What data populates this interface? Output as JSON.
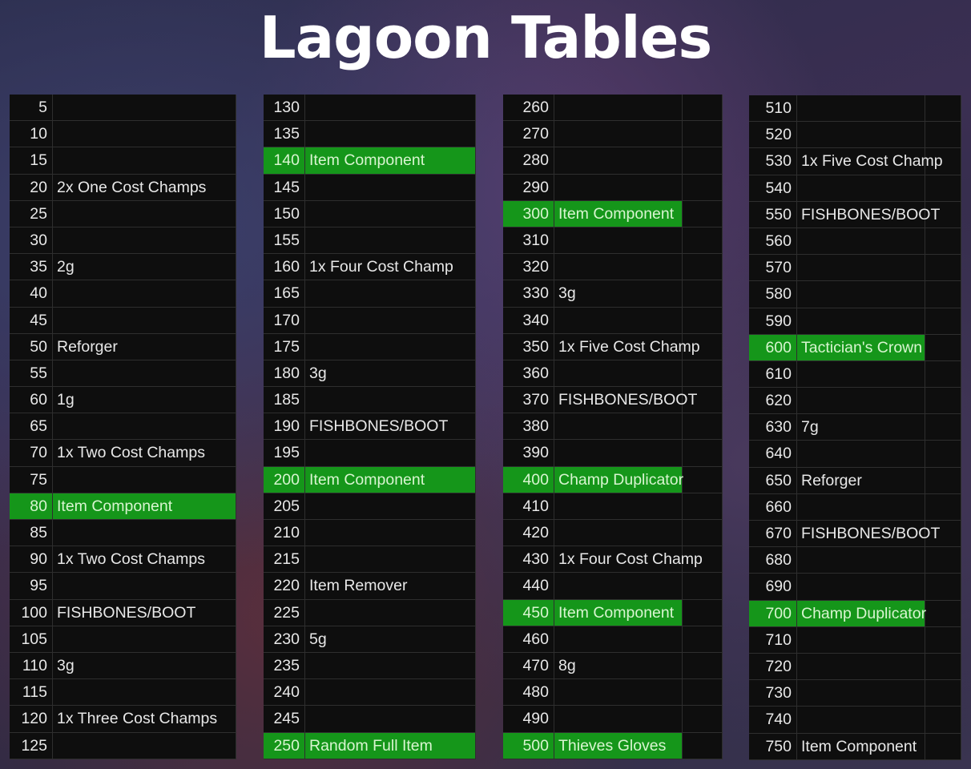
{
  "title": "Lagoon Tables",
  "highlight_color": "#15961a",
  "tables": [
    {
      "rows": [
        {
          "n": "5",
          "label": ""
        },
        {
          "n": "10",
          "label": ""
        },
        {
          "n": "15",
          "label": ""
        },
        {
          "n": "20",
          "label": "2x One Cost Champs"
        },
        {
          "n": "25",
          "label": ""
        },
        {
          "n": "30",
          "label": ""
        },
        {
          "n": "35",
          "label": "2g"
        },
        {
          "n": "40",
          "label": ""
        },
        {
          "n": "45",
          "label": ""
        },
        {
          "n": "50",
          "label": "Reforger"
        },
        {
          "n": "55",
          "label": ""
        },
        {
          "n": "60",
          "label": "1g"
        },
        {
          "n": "65",
          "label": ""
        },
        {
          "n": "70",
          "label": "1x Two Cost Champs"
        },
        {
          "n": "75",
          "label": ""
        },
        {
          "n": "80",
          "label": "Item Component",
          "hl": true
        },
        {
          "n": "85",
          "label": ""
        },
        {
          "n": "90",
          "label": "1x Two Cost Champs"
        },
        {
          "n": "95",
          "label": ""
        },
        {
          "n": "100",
          "label": "FISHBONES/BOOT"
        },
        {
          "n": "105",
          "label": ""
        },
        {
          "n": "110",
          "label": "3g"
        },
        {
          "n": "115",
          "label": ""
        },
        {
          "n": "120",
          "label": "1x Three Cost Champs"
        },
        {
          "n": "125",
          "label": ""
        }
      ]
    },
    {
      "rows": [
        {
          "n": "130",
          "label": ""
        },
        {
          "n": "135",
          "label": ""
        },
        {
          "n": "140",
          "label": "Item Component",
          "hl": true
        },
        {
          "n": "145",
          "label": ""
        },
        {
          "n": "150",
          "label": ""
        },
        {
          "n": "155",
          "label": ""
        },
        {
          "n": "160",
          "label": "1x Four Cost Champ"
        },
        {
          "n": "165",
          "label": ""
        },
        {
          "n": "170",
          "label": ""
        },
        {
          "n": "175",
          "label": ""
        },
        {
          "n": "180",
          "label": "3g"
        },
        {
          "n": "185",
          "label": ""
        },
        {
          "n": "190",
          "label": "FISHBONES/BOOT"
        },
        {
          "n": "195",
          "label": ""
        },
        {
          "n": "200",
          "label": "Item Component",
          "hl": true
        },
        {
          "n": "205",
          "label": ""
        },
        {
          "n": "210",
          "label": ""
        },
        {
          "n": "215",
          "label": ""
        },
        {
          "n": "220",
          "label": "Item Remover"
        },
        {
          "n": "225",
          "label": ""
        },
        {
          "n": "230",
          "label": "5g"
        },
        {
          "n": "235",
          "label": ""
        },
        {
          "n": "240",
          "label": ""
        },
        {
          "n": "245",
          "label": ""
        },
        {
          "n": "250",
          "label": "Random Full Item",
          "hl": true
        }
      ]
    },
    {
      "rows": [
        {
          "n": "260",
          "label": ""
        },
        {
          "n": "270",
          "label": ""
        },
        {
          "n": "280",
          "label": ""
        },
        {
          "n": "290",
          "label": ""
        },
        {
          "n": "300",
          "label": "Item Component",
          "hl": true
        },
        {
          "n": "310",
          "label": ""
        },
        {
          "n": "320",
          "label": ""
        },
        {
          "n": "330",
          "label": "3g"
        },
        {
          "n": "340",
          "label": ""
        },
        {
          "n": "350",
          "label": "1x Five Cost Champ"
        },
        {
          "n": "360",
          "label": ""
        },
        {
          "n": "370",
          "label": "FISHBONES/BOOT"
        },
        {
          "n": "380",
          "label": ""
        },
        {
          "n": "390",
          "label": ""
        },
        {
          "n": "400",
          "label": "Champ Duplicator",
          "hl": true
        },
        {
          "n": "410",
          "label": ""
        },
        {
          "n": "420",
          "label": ""
        },
        {
          "n": "430",
          "label": "1x Four Cost Champ"
        },
        {
          "n": "440",
          "label": ""
        },
        {
          "n": "450",
          "label": "Item Component",
          "hl": true
        },
        {
          "n": "460",
          "label": ""
        },
        {
          "n": "470",
          "label": "8g"
        },
        {
          "n": "480",
          "label": ""
        },
        {
          "n": "490",
          "label": ""
        },
        {
          "n": "500",
          "label": "Thieves Gloves",
          "hl": true
        }
      ]
    },
    {
      "rows": [
        {
          "n": "510",
          "label": ""
        },
        {
          "n": "520",
          "label": ""
        },
        {
          "n": "530",
          "label": "1x Five Cost Champ"
        },
        {
          "n": "540",
          "label": ""
        },
        {
          "n": "550",
          "label": "FISHBONES/BOOT"
        },
        {
          "n": "560",
          "label": ""
        },
        {
          "n": "570",
          "label": ""
        },
        {
          "n": "580",
          "label": ""
        },
        {
          "n": "590",
          "label": ""
        },
        {
          "n": "600",
          "label": "Tactician's Crown",
          "hl": true
        },
        {
          "n": "610",
          "label": ""
        },
        {
          "n": "620",
          "label": ""
        },
        {
          "n": "630",
          "label": "7g"
        },
        {
          "n": "640",
          "label": ""
        },
        {
          "n": "650",
          "label": "Reforger"
        },
        {
          "n": "660",
          "label": ""
        },
        {
          "n": "670",
          "label": "FISHBONES/BOOT"
        },
        {
          "n": "680",
          "label": ""
        },
        {
          "n": "690",
          "label": ""
        },
        {
          "n": "700",
          "label": "Champ Duplicator",
          "hl": true
        },
        {
          "n": "710",
          "label": ""
        },
        {
          "n": "720",
          "label": ""
        },
        {
          "n": "730",
          "label": ""
        },
        {
          "n": "740",
          "label": ""
        },
        {
          "n": "750",
          "label": "Item Component"
        }
      ]
    }
  ]
}
